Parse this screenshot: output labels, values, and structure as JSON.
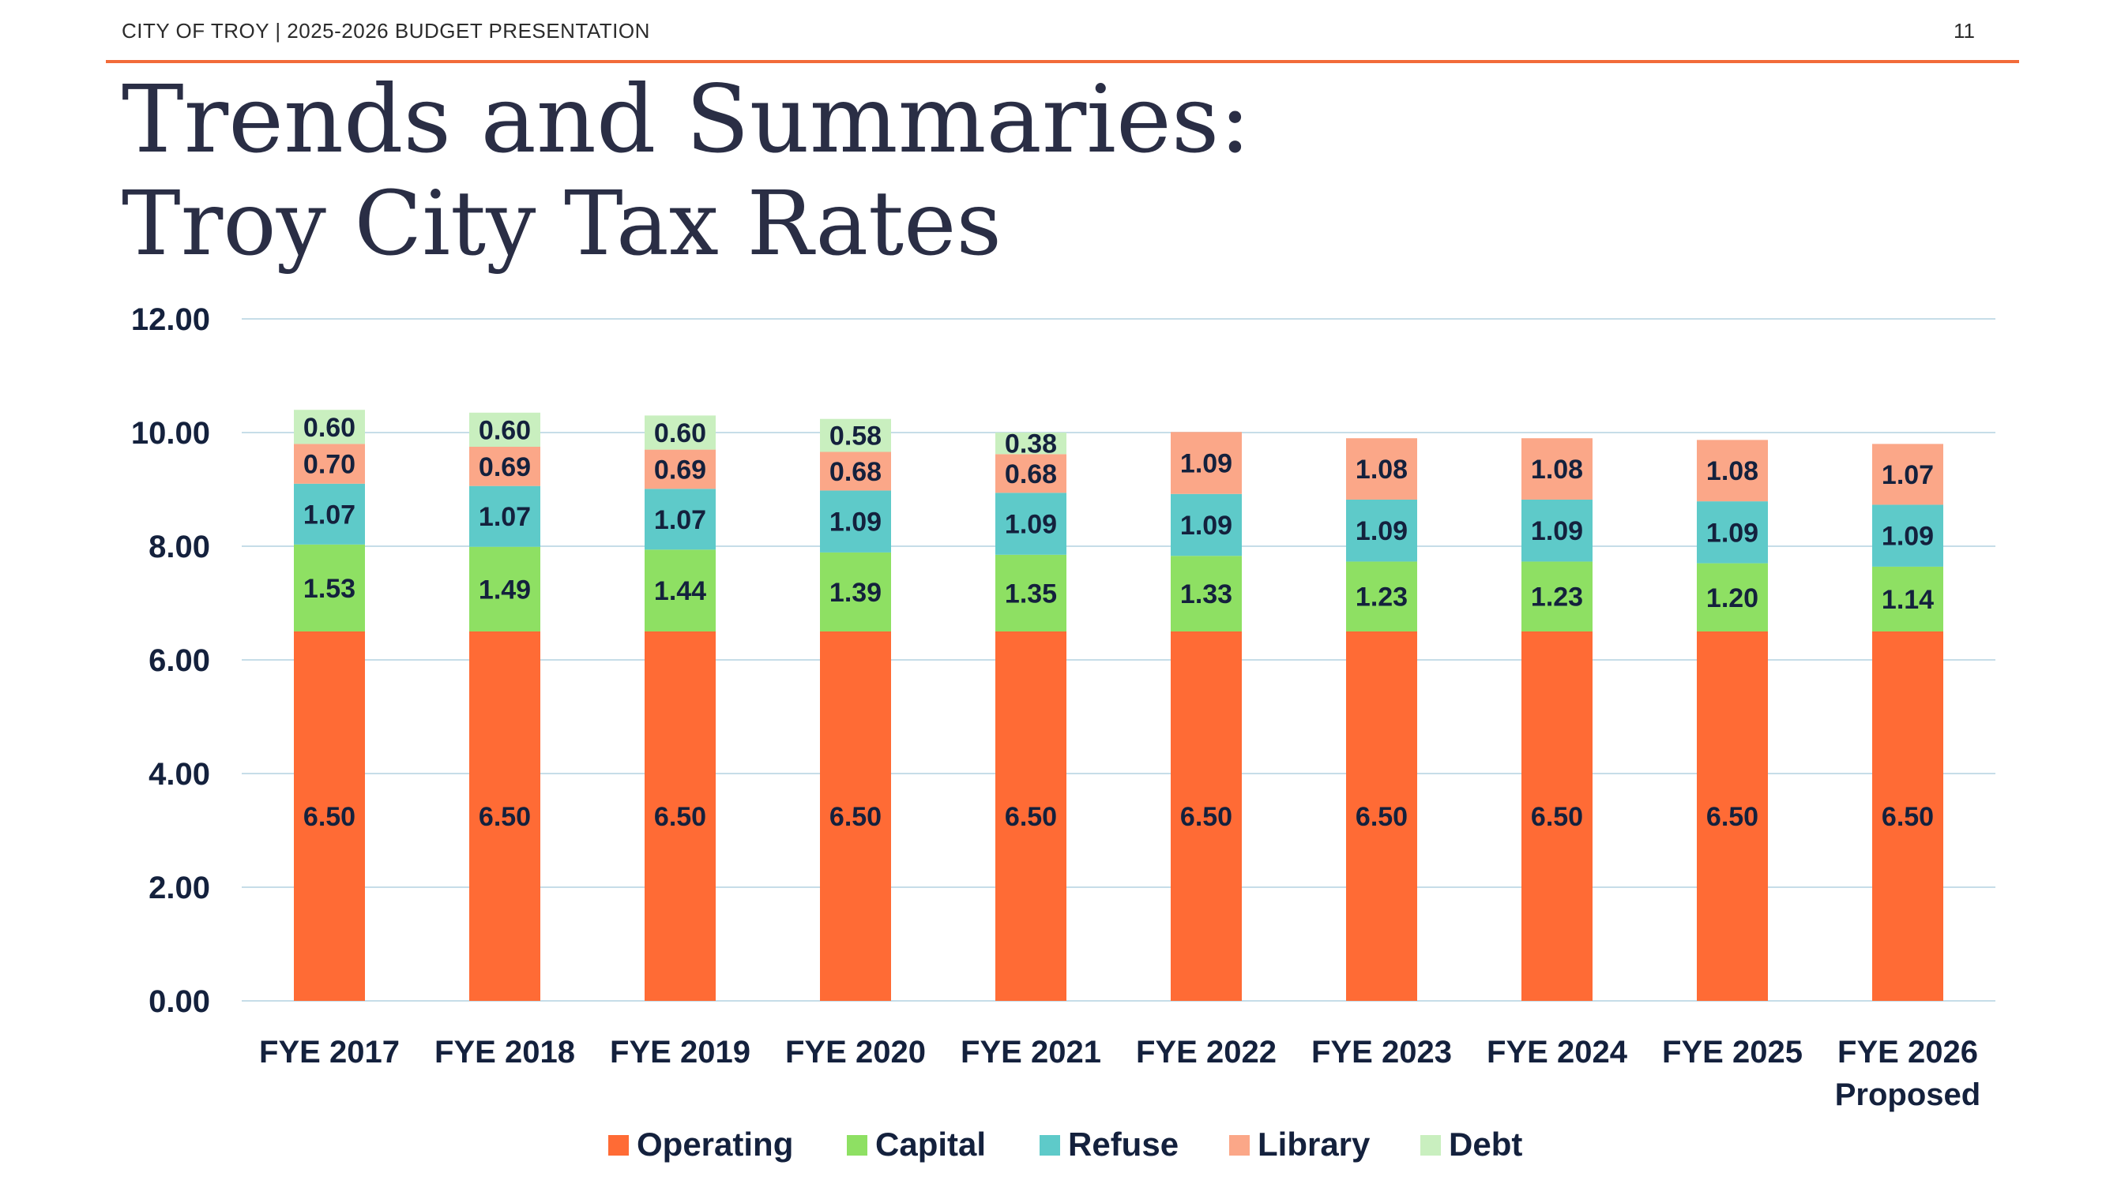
{
  "header": {
    "org": "CITY OF TROY | 2025-2026 BUDGET PRESENTATION",
    "page": "11"
  },
  "slide": {
    "title": "Trends and Summaries:",
    "subtitle": "Troy City Tax Rates"
  },
  "chart_data": {
    "type": "bar",
    "stacked": true,
    "categories": [
      "FYE 2017",
      "FYE 2018",
      "FYE 2019",
      "FYE 2020",
      "FYE 2021",
      "FYE 2022",
      "FYE 2023",
      "FYE 2024",
      "FYE 2025",
      "FYE 2026\nProposed"
    ],
    "series": [
      {
        "name": "Operating",
        "color": "#ff6b35",
        "values": [
          6.5,
          6.5,
          6.5,
          6.5,
          6.5,
          6.5,
          6.5,
          6.5,
          6.5,
          6.5
        ],
        "labels": [
          "6.50",
          "6.50",
          "6.50",
          "6.50",
          "6.50",
          "6.50",
          "6.50",
          "6.50",
          "6.50",
          "6.50"
        ]
      },
      {
        "name": "Capital",
        "color": "#8ee063",
        "values": [
          1.53,
          1.49,
          1.44,
          1.39,
          1.35,
          1.33,
          1.23,
          1.23,
          1.2,
          1.14
        ],
        "labels": [
          "1.53",
          "1.49",
          "1.44",
          "1.39",
          "1.35",
          "1.33",
          "1.23",
          "1.23",
          "1.20",
          "1.14"
        ]
      },
      {
        "name": "Refuse",
        "color": "#5ecac9",
        "values": [
          1.07,
          1.07,
          1.07,
          1.09,
          1.09,
          1.09,
          1.09,
          1.09,
          1.09,
          1.09
        ],
        "labels": [
          "1.07",
          "1.07",
          "1.07",
          "1.09",
          "1.09",
          "1.09",
          "1.09",
          "1.09",
          "1.09",
          "1.09"
        ]
      },
      {
        "name": "Library",
        "color": "#fba788",
        "values": [
          0.7,
          0.69,
          0.69,
          0.68,
          0.68,
          1.09,
          1.08,
          1.08,
          1.08,
          1.07
        ],
        "labels": [
          "0.70",
          "0.69",
          "0.69",
          "0.68",
          "0.68",
          "1.09",
          "1.08",
          "1.08",
          "1.08",
          "1.07"
        ]
      },
      {
        "name": "Debt",
        "color": "#c9efbf",
        "values": [
          0.6,
          0.6,
          0.6,
          0.58,
          0.38,
          0,
          0,
          0,
          0,
          0
        ],
        "labels": [
          "0.60",
          "0.60",
          "0.60",
          "0.58",
          "0.38",
          "",
          "",
          "",
          "",
          ""
        ]
      }
    ],
    "ylim": [
      0,
      12
    ],
    "yticks": [
      "0.00",
      "2.00",
      "4.00",
      "6.00",
      "8.00",
      "10.00",
      "12.00"
    ],
    "grid": true,
    "legend": "bottom-center",
    "title": "",
    "xlabel": "",
    "ylabel": ""
  }
}
